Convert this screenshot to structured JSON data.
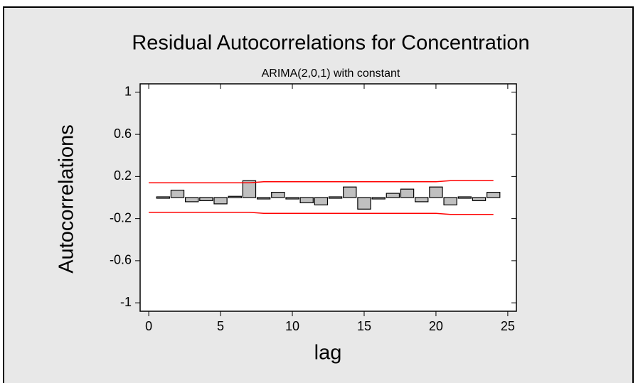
{
  "chart_data": {
    "type": "bar",
    "title": "Residual Autocorrelations for Concentration",
    "subtitle": "ARIMA(2,0,1) with constant",
    "x_label": "lag",
    "y_label": "Autocorrelations",
    "x": [
      1,
      2,
      3,
      4,
      5,
      6,
      7,
      8,
      9,
      10,
      11,
      12,
      13,
      14,
      15,
      16,
      17,
      18,
      19,
      20,
      21,
      22,
      23,
      24
    ],
    "values": [
      0,
      0.07,
      -0.04,
      -0.03,
      -0.06,
      0.005,
      0.16,
      -0.01,
      0.05,
      -0.01,
      -0.05,
      -0.07,
      0,
      0.1,
      -0.11,
      -0.01,
      0.04,
      0.08,
      -0.04,
      0.1,
      -0.07,
      0,
      -0.03,
      0.05
    ],
    "color": "#c0c0c0",
    "limits": {
      "color": "#ff0000",
      "x": [
        0,
        7,
        8,
        20,
        21,
        24
      ],
      "upper": [
        0.14,
        0.14,
        0.15,
        0.15,
        0.16,
        0.16
      ],
      "lower": [
        -0.14,
        -0.14,
        -0.15,
        -0.15,
        -0.16,
        -0.16
      ]
    },
    "xlim": [
      -0.6,
      25.6
    ],
    "ylim": [
      -1.08,
      1.08
    ],
    "xticks": [
      0,
      5,
      10,
      15,
      20,
      25
    ],
    "yticks": [
      1,
      0.6,
      0.2,
      -0.2,
      -0.6,
      -1
    ]
  }
}
